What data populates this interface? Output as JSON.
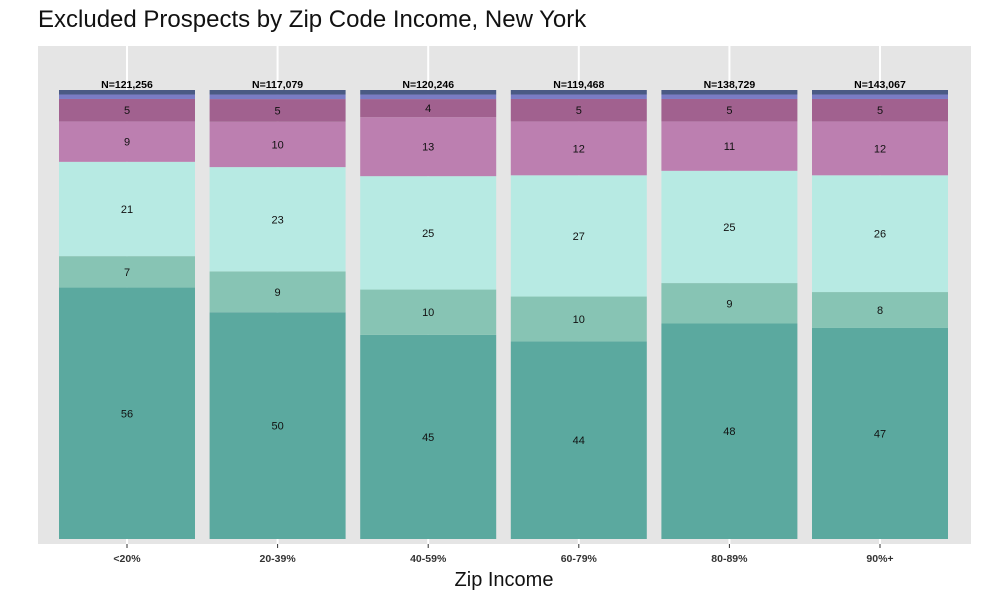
{
  "chart_data": {
    "type": "bar",
    "stacked": true,
    "title": "Excluded Prospects by Zip Code Income, New York",
    "xlabel": "Zip Income",
    "ylabel": "",
    "ylim": [
      0,
      100
    ],
    "grid": true,
    "categories": [
      "<20%",
      "20-39%",
      "40-59%",
      "60-79%",
      "80-89%",
      "90%+"
    ],
    "totals": [
      "N=121,256",
      "N=117,079",
      "N=120,246",
      "N=119,468",
      "N=138,729",
      "N=143,067"
    ],
    "series": [
      {
        "color": "#5ba99f",
        "values": [
          56,
          50,
          45,
          44,
          48,
          47
        ]
      },
      {
        "color": "#87c4b4",
        "values": [
          7,
          9,
          10,
          10,
          9,
          8
        ]
      },
      {
        "color": "#b7eae3",
        "values": [
          21,
          23,
          25,
          27,
          25,
          26
        ]
      },
      {
        "color": "#bc7fb0",
        "values": [
          9,
          10,
          13,
          12,
          11,
          12
        ]
      },
      {
        "color": "#a1618f",
        "values": [
          5,
          5,
          4,
          5,
          5,
          5
        ]
      },
      {
        "color": "#7a7cc4",
        "values": [
          1,
          1,
          1,
          1,
          1,
          1
        ]
      },
      {
        "color": "#4a5a84",
        "values": [
          1,
          1,
          1,
          1,
          1,
          1
        ]
      }
    ]
  }
}
